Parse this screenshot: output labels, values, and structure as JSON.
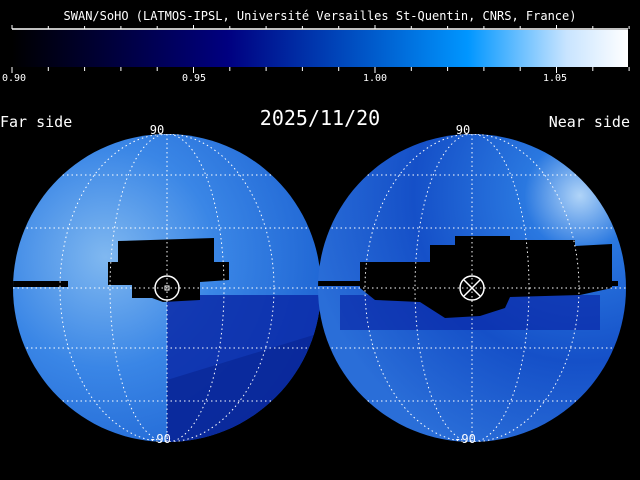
{
  "credit": "SWAN/SoHO (LATMOS-IPSL, Université Versailles St-Quentin, CNRS, France)",
  "colorbar": {
    "min": 0.9,
    "max": 1.07,
    "ticks": [
      "0.90",
      "0.95",
      "1.00",
      "1.05"
    ],
    "colors": [
      "#000000",
      "#000080",
      "#0060d0",
      "#0096ff",
      "#c8e4ff",
      "#ffffff"
    ]
  },
  "date": "2025/11/20",
  "far_side": {
    "label": "Far side",
    "top_label": "90",
    "bottom_label": "-90"
  },
  "near_side": {
    "label": "Near side",
    "top_label": "90",
    "bottom_label": "-90"
  }
}
